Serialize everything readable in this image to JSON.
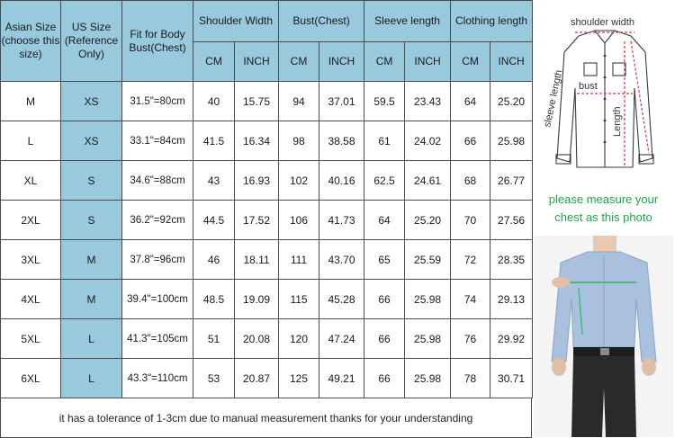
{
  "headers": {
    "asian_size": "Asian Size (choose this size)",
    "us_size": "US Size (Reference Only)",
    "fit_for_body": "Fit for Body Bust(Chest)",
    "shoulder_width": "Shoulder Width",
    "bust": "Bust(Chest)",
    "sleeve_length": "Sleeve length",
    "clothing_length": "Clothing length",
    "unit_cm": "CM",
    "unit_inch": "INCH"
  },
  "rows": [
    {
      "asian": "M",
      "us": "XS",
      "fit": "31.5\"=80cm",
      "shoulder_cm": "40",
      "shoulder_in": "15.75",
      "bust_cm": "94",
      "bust_in": "37.01",
      "sleeve_cm": "59.5",
      "sleeve_in": "23.43",
      "length_cm": "64",
      "length_in": "25.20"
    },
    {
      "asian": "L",
      "us": "XS",
      "fit": "33.1\"=84cm",
      "shoulder_cm": "41.5",
      "shoulder_in": "16.34",
      "bust_cm": "98",
      "bust_in": "38.58",
      "sleeve_cm": "61",
      "sleeve_in": "24.02",
      "length_cm": "66",
      "length_in": "25.98"
    },
    {
      "asian": "XL",
      "us": "S",
      "fit": "34.6\"=88cm",
      "shoulder_cm": "43",
      "shoulder_in": "16.93",
      "bust_cm": "102",
      "bust_in": "40.16",
      "sleeve_cm": "62.5",
      "sleeve_in": "24.61",
      "length_cm": "68",
      "length_in": "26.77"
    },
    {
      "asian": "2XL",
      "us": "S",
      "fit": "36.2\"=92cm",
      "shoulder_cm": "44.5",
      "shoulder_in": "17.52",
      "bust_cm": "106",
      "bust_in": "41.73",
      "sleeve_cm": "64",
      "sleeve_in": "25.20",
      "length_cm": "70",
      "length_in": "27.56"
    },
    {
      "asian": "3XL",
      "us": "M",
      "fit": "37.8\"=96cm",
      "shoulder_cm": "46",
      "shoulder_in": "18.11",
      "bust_cm": "111",
      "bust_in": "43.70",
      "sleeve_cm": "65",
      "sleeve_in": "25.59",
      "length_cm": "72",
      "length_in": "28.35"
    },
    {
      "asian": "4XL",
      "us": "M",
      "fit": "39.4\"=100cm",
      "shoulder_cm": "48.5",
      "shoulder_in": "19.09",
      "bust_cm": "115",
      "bust_in": "45.28",
      "sleeve_cm": "66",
      "sleeve_in": "25.98",
      "length_cm": "74",
      "length_in": "29.13"
    },
    {
      "asian": "5XL",
      "us": "L",
      "fit": "41.3\"=105cm",
      "shoulder_cm": "51",
      "shoulder_in": "20.08",
      "bust_cm": "120",
      "bust_in": "47.24",
      "sleeve_cm": "66",
      "sleeve_in": "25.98",
      "length_cm": "76",
      "length_in": "29.92"
    },
    {
      "asian": "6XL",
      "us": "L",
      "fit": "43.3\"=110cm",
      "shoulder_cm": "53",
      "shoulder_in": "20.87",
      "bust_cm": "125",
      "bust_in": "49.21",
      "sleeve_cm": "66",
      "sleeve_in": "25.98",
      "length_cm": "78",
      "length_in": "30.71"
    }
  ],
  "footer_note": "it has a tolerance of 1-3cm due to manual measurement thanks for your understanding",
  "diagram": {
    "shoulder_label": "shoulder width",
    "bust_label": "bust",
    "sleeve_label": "sleeve length",
    "length_label": "Length"
  },
  "measure_note": {
    "line1": "please measure your",
    "line2": "chest as this photo"
  },
  "colors": {
    "header_blue": "#99c9dd",
    "measure_red": "#d9363e",
    "note_green": "#1aa34a"
  }
}
